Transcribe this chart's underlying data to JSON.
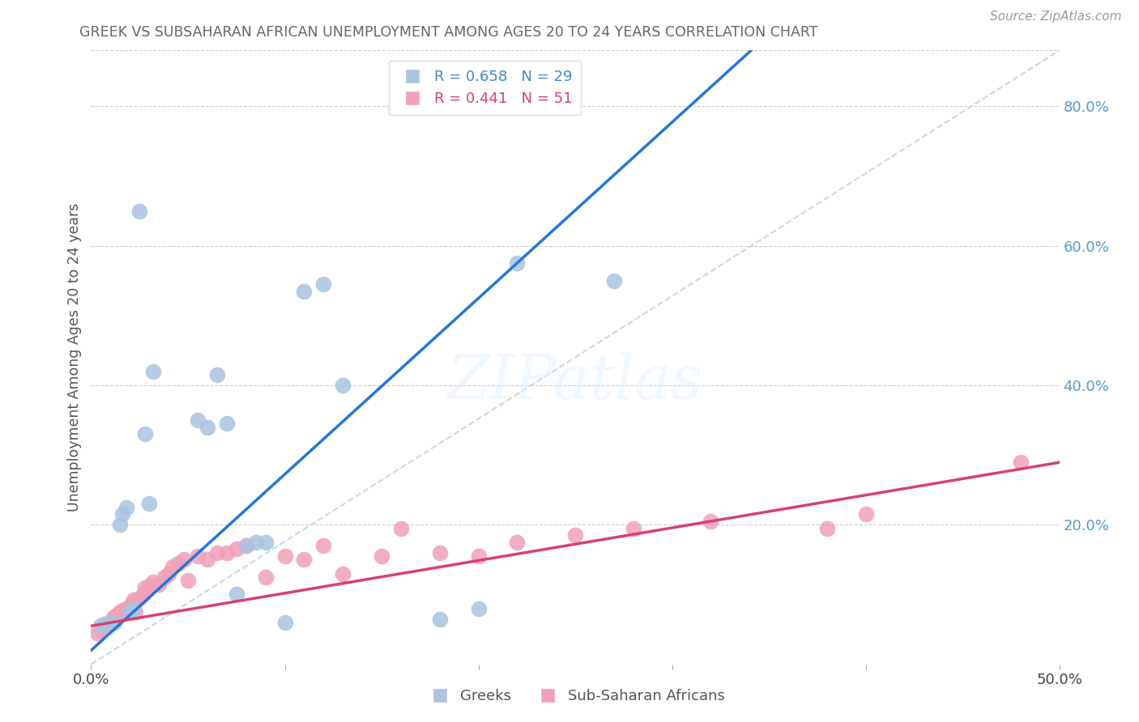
{
  "title": "GREEK VS SUBSAHARAN AFRICAN UNEMPLOYMENT AMONG AGES 20 TO 24 YEARS CORRELATION CHART",
  "source": "Source: ZipAtlas.com",
  "ylabel": "Unemployment Among Ages 20 to 24 years",
  "xlim": [
    0.0,
    0.5
  ],
  "ylim": [
    0.0,
    0.88
  ],
  "greek_R": 0.658,
  "greek_N": 29,
  "african_R": 0.441,
  "african_N": 51,
  "greek_color": "#aac4e0",
  "greek_line_color": "#2277dd",
  "african_color": "#f0a0b8",
  "african_line_color": "#d94070",
  "ref_line_color": "#b8d0e8",
  "background_color": "#ffffff",
  "grid_color": "#cccccc",
  "title_color": "#666666",
  "right_axis_color": "#5599cc",
  "legend_color_blue": "#4488cc",
  "legend_color_pink": "#d94070",
  "watermark": "ZIPatlas",
  "greek_x": [
    0.005,
    0.007,
    0.01,
    0.012,
    0.015,
    0.016,
    0.018,
    0.02,
    0.022,
    0.025,
    0.028,
    0.03,
    0.032,
    0.055,
    0.06,
    0.065,
    0.07,
    0.075,
    0.08,
    0.085,
    0.09,
    0.1,
    0.11,
    0.12,
    0.13,
    0.18,
    0.2,
    0.22,
    0.27
  ],
  "greek_y": [
    0.055,
    0.058,
    0.06,
    0.06,
    0.2,
    0.215,
    0.225,
    0.075,
    0.08,
    0.65,
    0.33,
    0.23,
    0.42,
    0.35,
    0.34,
    0.415,
    0.345,
    0.1,
    0.17,
    0.175,
    0.175,
    0.06,
    0.535,
    0.545,
    0.4,
    0.065,
    0.08,
    0.575,
    0.55
  ],
  "african_x": [
    0.003,
    0.005,
    0.006,
    0.007,
    0.008,
    0.01,
    0.011,
    0.012,
    0.013,
    0.015,
    0.016,
    0.017,
    0.018,
    0.02,
    0.021,
    0.022,
    0.023,
    0.025,
    0.027,
    0.028,
    0.03,
    0.032,
    0.035,
    0.038,
    0.04,
    0.042,
    0.045,
    0.048,
    0.05,
    0.055,
    0.06,
    0.065,
    0.07,
    0.075,
    0.08,
    0.09,
    0.1,
    0.11,
    0.12,
    0.13,
    0.15,
    0.16,
    0.18,
    0.2,
    0.22,
    0.25,
    0.28,
    0.32,
    0.38,
    0.4,
    0.48
  ],
  "african_y": [
    0.045,
    0.05,
    0.052,
    0.055,
    0.058,
    0.06,
    0.065,
    0.068,
    0.07,
    0.075,
    0.072,
    0.078,
    0.08,
    0.082,
    0.088,
    0.092,
    0.075,
    0.095,
    0.1,
    0.11,
    0.112,
    0.118,
    0.115,
    0.125,
    0.13,
    0.14,
    0.145,
    0.15,
    0.12,
    0.155,
    0.15,
    0.16,
    0.16,
    0.165,
    0.17,
    0.125,
    0.155,
    0.15,
    0.17,
    0.13,
    0.155,
    0.195,
    0.16,
    0.155,
    0.175,
    0.185,
    0.195,
    0.205,
    0.195,
    0.215,
    0.29
  ]
}
